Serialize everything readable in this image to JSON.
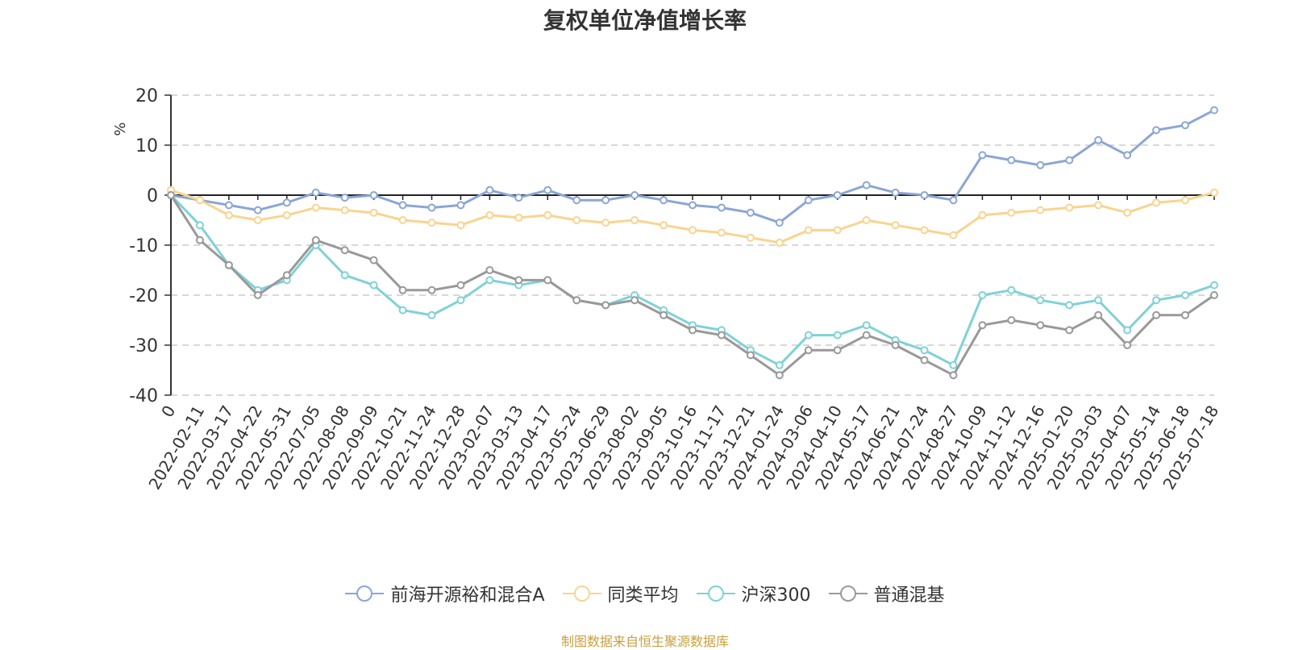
{
  "chart_data": {
    "type": "line",
    "title": "复权单位净值增长率",
    "ylabel": "%",
    "ylim": [
      -40,
      20
    ],
    "y_ticks": [
      "20",
      "10",
      "0",
      "-10",
      "-20",
      "-30",
      "-40"
    ],
    "grid": true,
    "legend_position": "bottom",
    "x": [
      "0",
      "2022-02-11",
      "2022-03-17",
      "2022-04-22",
      "2022-05-31",
      "2022-07-05",
      "2022-08-08",
      "2022-09-09",
      "2022-10-21",
      "2022-11-24",
      "2022-12-28",
      "2023-02-07",
      "2023-03-13",
      "2023-04-17",
      "2023-05-24",
      "2023-06-29",
      "2023-08-02",
      "2023-09-05",
      "2023-10-16",
      "2023-11-17",
      "2023-12-21",
      "2024-01-24",
      "2024-03-06",
      "2024-04-10",
      "2024-05-17",
      "2024-06-21",
      "2024-07-24",
      "2024-08-27",
      "2024-10-09",
      "2024-11-12",
      "2024-12-16",
      "2025-01-20",
      "2025-03-03",
      "2025-04-07",
      "2025-05-14",
      "2025-06-18",
      "2025-07-18"
    ],
    "series": [
      {
        "name": "前海开源裕和混合A",
        "color": "#8ba6d6",
        "values": [
          0,
          -1,
          -2,
          -3,
          -1.5,
          0.5,
          -0.5,
          0,
          -2,
          -2.5,
          -2,
          1,
          -0.5,
          1,
          -1,
          -1,
          0,
          -1,
          -2,
          -2.5,
          -3.5,
          -5.5,
          -1,
          0,
          2,
          0.5,
          0,
          -1,
          8,
          7,
          6,
          7,
          11,
          8,
          13,
          14,
          17
        ]
      },
      {
        "name": "同类平均",
        "color": "#f9d48f",
        "values": [
          1,
          -1,
          -4,
          -5,
          -4,
          -2.5,
          -3,
          -3.5,
          -5,
          -5.5,
          -6,
          -4,
          -4.5,
          -4,
          -5,
          -5.5,
          -5,
          -6,
          -7,
          -7.5,
          -8.5,
          -9.5,
          -7,
          -7,
          -5,
          -6,
          -7,
          -8,
          -4,
          -3.5,
          -3,
          -2.5,
          -2,
          -3.5,
          -1.5,
          -1,
          0.5
        ]
      },
      {
        "name": "沪深300",
        "color": "#7fd2d6",
        "values": [
          0,
          -6,
          -14,
          -19,
          -17,
          -10,
          -16,
          -18,
          -23,
          -24,
          -21,
          -17,
          -18,
          -17,
          -21,
          -22,
          -20,
          -23,
          -26,
          -27,
          -31,
          -34,
          -28,
          -28,
          -26,
          -29,
          -31,
          -34,
          -20,
          -19,
          -21,
          -22,
          -21,
          -27,
          -21,
          -20,
          -18
        ]
      },
      {
        "name": "普通混基",
        "color": "#999999",
        "values": [
          0,
          -9,
          -14,
          -20,
          -16,
          -9,
          -11,
          -13,
          -19,
          -19,
          -18,
          -15,
          -17,
          -17,
          -21,
          -22,
          -21,
          -24,
          -27,
          -28,
          -32,
          -36,
          -31,
          -31,
          -28,
          -30,
          -33,
          -36,
          -26,
          -25,
          -26,
          -27,
          -24,
          -30,
          -24,
          -24,
          -20
        ]
      }
    ]
  },
  "legend": [
    {
      "label": "前海开源裕和混合A",
      "color": "#8ba6d6"
    },
    {
      "label": "同类平均",
      "color": "#f9d48f"
    },
    {
      "label": "沪深300",
      "color": "#7fd2d6"
    },
    {
      "label": "普通混基",
      "color": "#999999"
    }
  ],
  "source_note": "制图数据来自恒生聚源数据库"
}
